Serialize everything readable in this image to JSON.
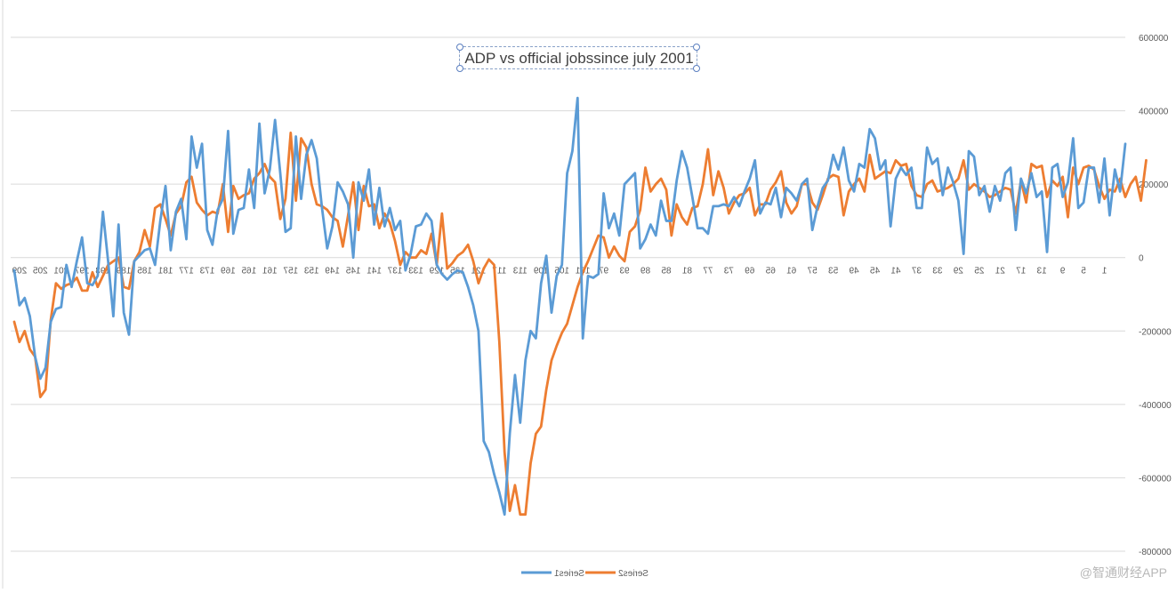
{
  "chart_data": {
    "type": "line",
    "title": "ADP  vs official jobssince july 2001",
    "y_axis": {
      "min": -800000,
      "max": 600000,
      "step": 200000,
      "ticks": [
        "600000",
        "400000",
        "200000",
        "0",
        "-200000",
        "-400000",
        "-600000",
        "-800000"
      ],
      "position": "right"
    },
    "x_axis": {
      "reversed": true,
      "first_index": 1,
      "last_index": 210,
      "ticks": [
        "209",
        "205",
        "201",
        "197",
        "193",
        "189",
        "185",
        "181",
        "177",
        "173",
        "169",
        "165",
        "161",
        "157",
        "153",
        "149",
        "145",
        "141",
        "137",
        "133",
        "129",
        "125",
        "121",
        "117",
        "113",
        "109",
        "105",
        "101",
        "97",
        "93",
        "89",
        "85",
        "81",
        "77",
        "73",
        "69",
        "65",
        "61",
        "57",
        "53",
        "49",
        "45",
        "41",
        "37",
        "33",
        "29",
        "25",
        "21",
        "17",
        "13",
        "9",
        "5",
        "1"
      ]
    },
    "legend_position": "bottom-center (mirrored)",
    "series": [
      {
        "name": "Series1",
        "color": "#5b9bd5",
        "points_left_to_right": [
          -35000,
          -130000,
          -110000,
          -160000,
          -270000,
          -330000,
          -300000,
          -175000,
          -140000,
          -135000,
          -20000,
          -80000,
          -10000,
          55000,
          -70000,
          -75000,
          -50000,
          125000,
          -10000,
          -160000,
          90000,
          -150000,
          -210000,
          -10000,
          5000,
          20000,
          25000,
          -20000,
          100000,
          195000,
          20000,
          125000,
          160000,
          50000,
          330000,
          245000,
          310000,
          75000,
          35000,
          130000,
          160000,
          345000,
          65000,
          130000,
          135000,
          240000,
          135000,
          365000,
          175000,
          240000,
          375000,
          230000,
          70000,
          80000,
          330000,
          160000,
          280000,
          320000,
          270000,
          135000,
          25000,
          85000,
          205000,
          180000,
          145000,
          0,
          205000,
          155000,
          240000,
          90000,
          190000,
          85000,
          135000,
          75000,
          100000,
          -35000,
          10000,
          85000,
          90000,
          120000,
          100000,
          -20000,
          -45000,
          -60000,
          -45000,
          -35000,
          -40000,
          -80000,
          -130000,
          -200000,
          -500000,
          -530000,
          -590000,
          -640000,
          -700000,
          -480000,
          -320000,
          -450000,
          -280000,
          -200000,
          -220000,
          -70000,
          5000,
          -150000,
          -50000,
          -20000,
          230000,
          290000,
          435000,
          -220000,
          -50000,
          -55000,
          -45000,
          175000,
          80000,
          120000,
          60000,
          200000,
          215000,
          230000,
          25000,
          50000,
          90000,
          60000,
          155000,
          100000,
          100000,
          210000,
          290000,
          245000,
          165000,
          80000,
          80000,
          65000,
          140000,
          140000,
          145000,
          140000,
          165000,
          140000,
          180000,
          215000,
          265000,
          120000,
          150000,
          145000,
          190000,
          110000,
          190000,
          175000,
          155000,
          200000,
          215000,
          75000,
          140000,
          190000,
          210000,
          280000,
          240000,
          300000,
          210000,
          180000,
          255000,
          245000,
          350000,
          325000,
          240000,
          265000,
          85000,
          215000,
          245000,
          225000,
          245000,
          135000,
          135000,
          300000,
          255000,
          270000,
          170000,
          245000,
          205000,
          155000,
          10000,
          290000,
          275000,
          170000,
          195000,
          125000,
          195000,
          155000,
          230000,
          245000,
          75000,
          215000,
          175000,
          230000,
          165000,
          180000,
          15000,
          245000,
          255000,
          165000,
          205000,
          325000,
          135000,
          150000,
          245000,
          245000,
          150000,
          270000,
          115000,
          240000,
          180000,
          310000
        ]
      },
      {
        "name": "Series2",
        "color": "#ed7d31",
        "points_left_to_right": [
          -175000,
          -230000,
          -200000,
          -250000,
          -270000,
          -380000,
          -360000,
          -170000,
          -70000,
          -85000,
          -75000,
          -70000,
          -55000,
          -90000,
          -90000,
          -40000,
          -80000,
          -50000,
          -20000,
          -10000,
          0,
          -80000,
          -85000,
          -10000,
          15000,
          75000,
          30000,
          135000,
          145000,
          105000,
          60000,
          120000,
          140000,
          205000,
          220000,
          150000,
          130000,
          115000,
          125000,
          120000,
          200000,
          70000,
          195000,
          160000,
          170000,
          175000,
          215000,
          230000,
          255000,
          220000,
          205000,
          105000,
          160000,
          340000,
          155000,
          325000,
          300000,
          200000,
          145000,
          140000,
          130000,
          110000,
          100000,
          30000,
          115000,
          205000,
          75000,
          195000,
          140000,
          145000,
          80000,
          120000,
          95000,
          45000,
          -20000,
          15000,
          0,
          0,
          20000,
          10000,
          65000,
          -20000,
          120000,
          -30000,
          -15000,
          5000,
          15000,
          35000,
          -10000,
          -70000,
          -30000,
          -5000,
          -20000,
          -230000,
          -530000,
          -690000,
          -620000,
          -700000,
          -700000,
          -560000,
          -480000,
          -460000,
          -360000,
          -280000,
          -240000,
          -205000,
          -180000,
          -130000,
          -80000,
          -40000,
          -10000,
          25000,
          60000,
          55000,
          0,
          30000,
          5000,
          -10000,
          70000,
          85000,
          130000,
          245000,
          180000,
          200000,
          215000,
          185000,
          60000,
          145000,
          110000,
          90000,
          135000,
          140000,
          200000,
          295000,
          170000,
          235000,
          190000,
          120000,
          150000,
          170000,
          175000,
          190000,
          115000,
          145000,
          145000,
          185000,
          205000,
          235000,
          150000,
          120000,
          140000,
          200000,
          200000,
          150000,
          130000,
          170000,
          215000,
          225000,
          220000,
          115000,
          180000,
          200000,
          215000,
          180000,
          280000,
          215000,
          225000,
          235000,
          230000,
          265000,
          250000,
          255000,
          195000,
          170000,
          165000,
          200000,
          210000,
          180000,
          185000,
          190000,
          200000,
          215000,
          265000,
          185000,
          200000,
          190000,
          180000,
          165000,
          170000,
          180000,
          190000,
          185000,
          120000,
          210000,
          150000,
          255000,
          245000,
          250000,
          165000,
          210000,
          195000,
          220000,
          110000,
          245000,
          200000,
          245000,
          250000,
          240000,
          195000,
          160000,
          185000,
          180000,
          215000,
          165000,
          200000,
          220000,
          155000,
          265000
        ]
      }
    ],
    "legend": [
      {
        "name": "Series1",
        "color": "#5b9bd5"
      },
      {
        "name": "Series2",
        "color": "#ed7d31"
      }
    ]
  },
  "watermark": "@智通财经APP"
}
